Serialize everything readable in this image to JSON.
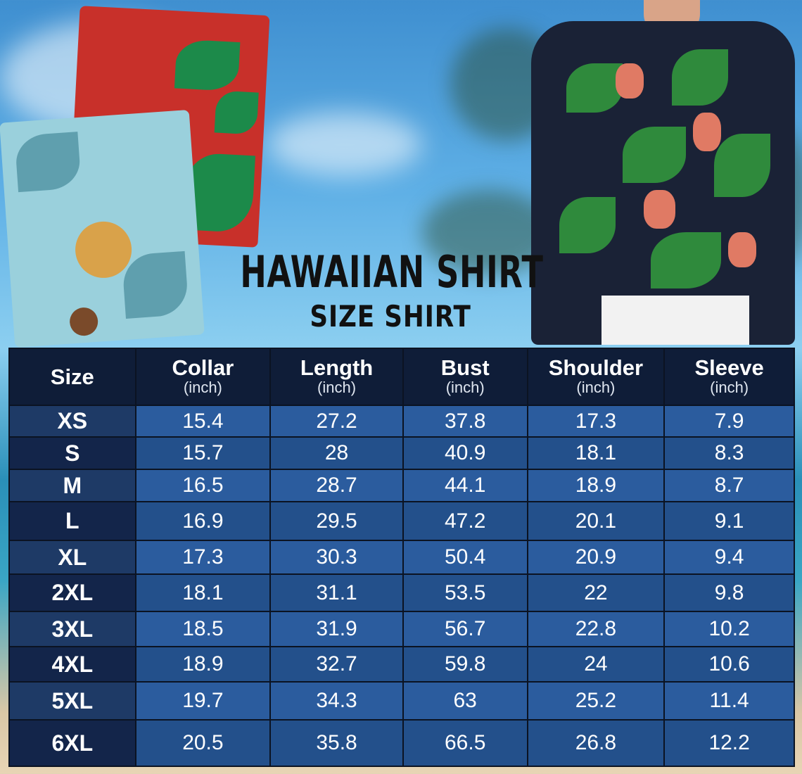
{
  "title": "HAWAIIAN SHIRT",
  "subtitle": "SIZE SHIRT",
  "colors": {
    "header": "#0f1d38",
    "cell_light": "#2b5c9e",
    "cell_dark": "#23508b",
    "title": "#111111"
  },
  "table": {
    "headers": [
      {
        "label": "Size",
        "unit": ""
      },
      {
        "label": "Collar",
        "unit": "(inch)"
      },
      {
        "label": "Length",
        "unit": "(inch)"
      },
      {
        "label": "Bust",
        "unit": "(inch)"
      },
      {
        "label": "Shoulder",
        "unit": "(inch)"
      },
      {
        "label": "Sleeve",
        "unit": "(inch)"
      }
    ],
    "rows": [
      [
        "XS",
        "15.4",
        "27.2",
        "37.8",
        "17.3",
        "7.9"
      ],
      [
        "S",
        "15.7",
        "28",
        "40.9",
        "18.1",
        "8.3"
      ],
      [
        "M",
        "16.5",
        "28.7",
        "44.1",
        "18.9",
        "8.7"
      ],
      [
        "L",
        "16.9",
        "29.5",
        "47.2",
        "20.1",
        "9.1"
      ],
      [
        "XL",
        "17.3",
        "30.3",
        "50.4",
        "20.9",
        "9.4"
      ],
      [
        "2XL",
        "18.1",
        "31.1",
        "53.5",
        "22",
        "9.8"
      ],
      [
        "3XL",
        "18.5",
        "31.9",
        "56.7",
        "22.8",
        "10.2"
      ],
      [
        "4XL",
        "18.9",
        "32.7",
        "59.8",
        "24",
        "10.6"
      ],
      [
        "5XL",
        "19.7",
        "34.3",
        "63",
        "25.2",
        "11.4"
      ],
      [
        "6XL",
        "20.5",
        "35.8",
        "66.5",
        "26.8",
        "12.2"
      ]
    ]
  }
}
